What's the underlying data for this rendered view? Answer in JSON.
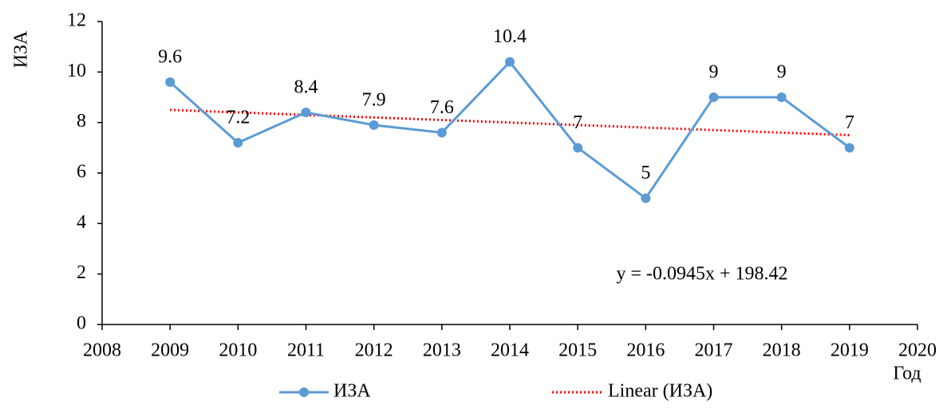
{
  "chart_data": {
    "type": "line",
    "x": [
      2009,
      2010,
      2011,
      2012,
      2013,
      2014,
      2015,
      2016,
      2017,
      2018,
      2019
    ],
    "series": [
      {
        "name": "ИЗА",
        "color": "#5b9bd5",
        "values": [
          9.6,
          7.2,
          8.4,
          7.9,
          7.6,
          10.4,
          7,
          5,
          9,
          9,
          7
        ]
      }
    ],
    "trendline": {
      "name": "Linear (ИЗА)",
      "color": "#ff0000",
      "x": [
        2009,
        2019
      ],
      "values": [
        8.5,
        7.5
      ]
    },
    "annotation": "y = -0.0945x + 198.42",
    "xlabel": "Год",
    "ylabel": "ИЗА",
    "xlim": [
      2008,
      2020
    ],
    "xticks": [
      2008,
      2009,
      2010,
      2011,
      2012,
      2013,
      2014,
      2015,
      2016,
      2017,
      2018,
      2019,
      2020
    ],
    "ylim": [
      0,
      12
    ],
    "yticks": [
      0,
      2,
      4,
      6,
      8,
      10,
      12
    ],
    "grid": false,
    "legend": "bottom"
  }
}
